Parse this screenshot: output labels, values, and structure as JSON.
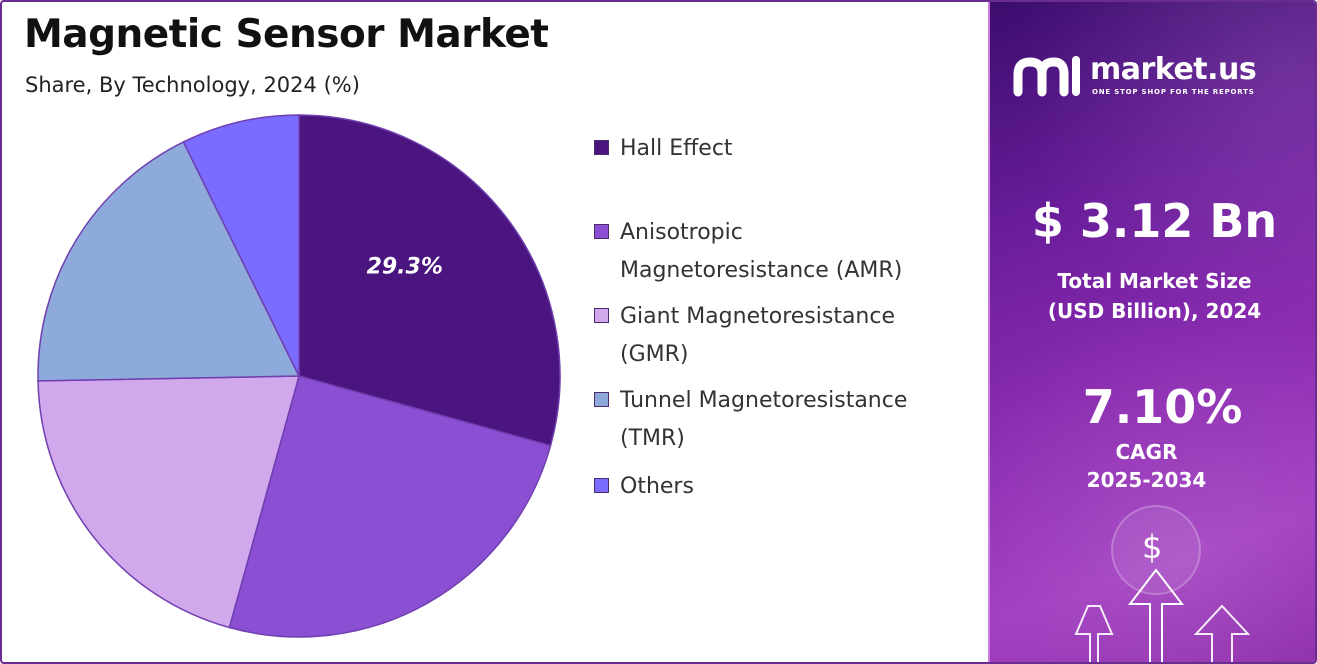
{
  "header": {
    "title": "Magnetic Sensor Market",
    "subtitle": "Share, By Technology, 2024 (%)"
  },
  "chart_data": {
    "type": "pie",
    "title": "Magnetic Sensor Market",
    "subtitle": "Share, By Technology, 2024 (%)",
    "categories": [
      "Hall Effect",
      "Anisotropic Magnetoresistance (AMR)",
      "Giant Magnetoresistance (GMR)",
      "Tunnel Magnetoresistance (TMR)",
      "Others"
    ],
    "values": [
      29.3,
      25.0,
      20.4,
      18.0,
      7.3
    ],
    "data_labels": [
      "29.3%",
      "",
      "",
      "",
      ""
    ],
    "colors": [
      "#4b157f",
      "#8b4fd3",
      "#d1a8ec",
      "#8eaadb",
      "#7a6cff"
    ],
    "legend_position": "right"
  },
  "legend": {
    "items": [
      {
        "line1": "Hall Effect",
        "line2": ""
      },
      {
        "line1": "Anisotropic",
        "line2": "Magnetoresistance (AMR)"
      },
      {
        "line1": "Giant Magnetoresistance",
        "line2": "(GMR)"
      },
      {
        "line1": "Tunnel Magnetoresistance",
        "line2": "(TMR)"
      },
      {
        "line1": "Others",
        "line2": ""
      }
    ]
  },
  "panel": {
    "logo_name": "market.us",
    "logo_tagline": "ONE STOP SHOP FOR THE REPORTS",
    "market_size": "$ 3.12 Bn",
    "market_size_label_1": "Total Market Size",
    "market_size_label_2": "(USD Billion), 2024",
    "cagr_value": "7.10%",
    "cagr_label": "CAGR",
    "cagr_period": "2025-2034",
    "dollar_symbol": "$",
    "icons": [
      "market-us-logo-icon",
      "dollar-coin-icon",
      "growth-arrow-icon"
    ]
  }
}
